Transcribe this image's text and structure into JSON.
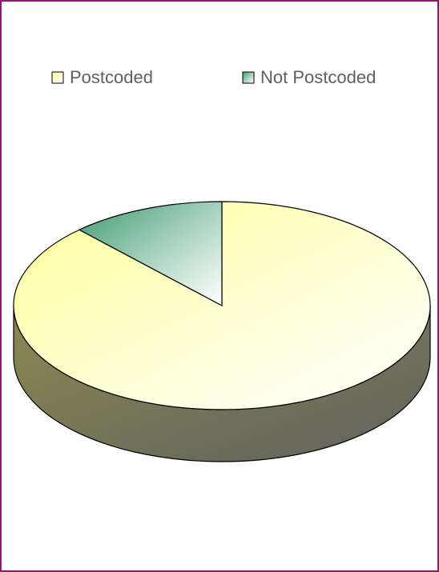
{
  "chart_data": {
    "type": "pie3d",
    "categories": [
      "Postcoded",
      "Not Postcoded"
    ],
    "values": [
      88,
      12
    ],
    "colors": [
      "#ffff99",
      "#3a9a6c"
    ],
    "legend": "top"
  }
}
